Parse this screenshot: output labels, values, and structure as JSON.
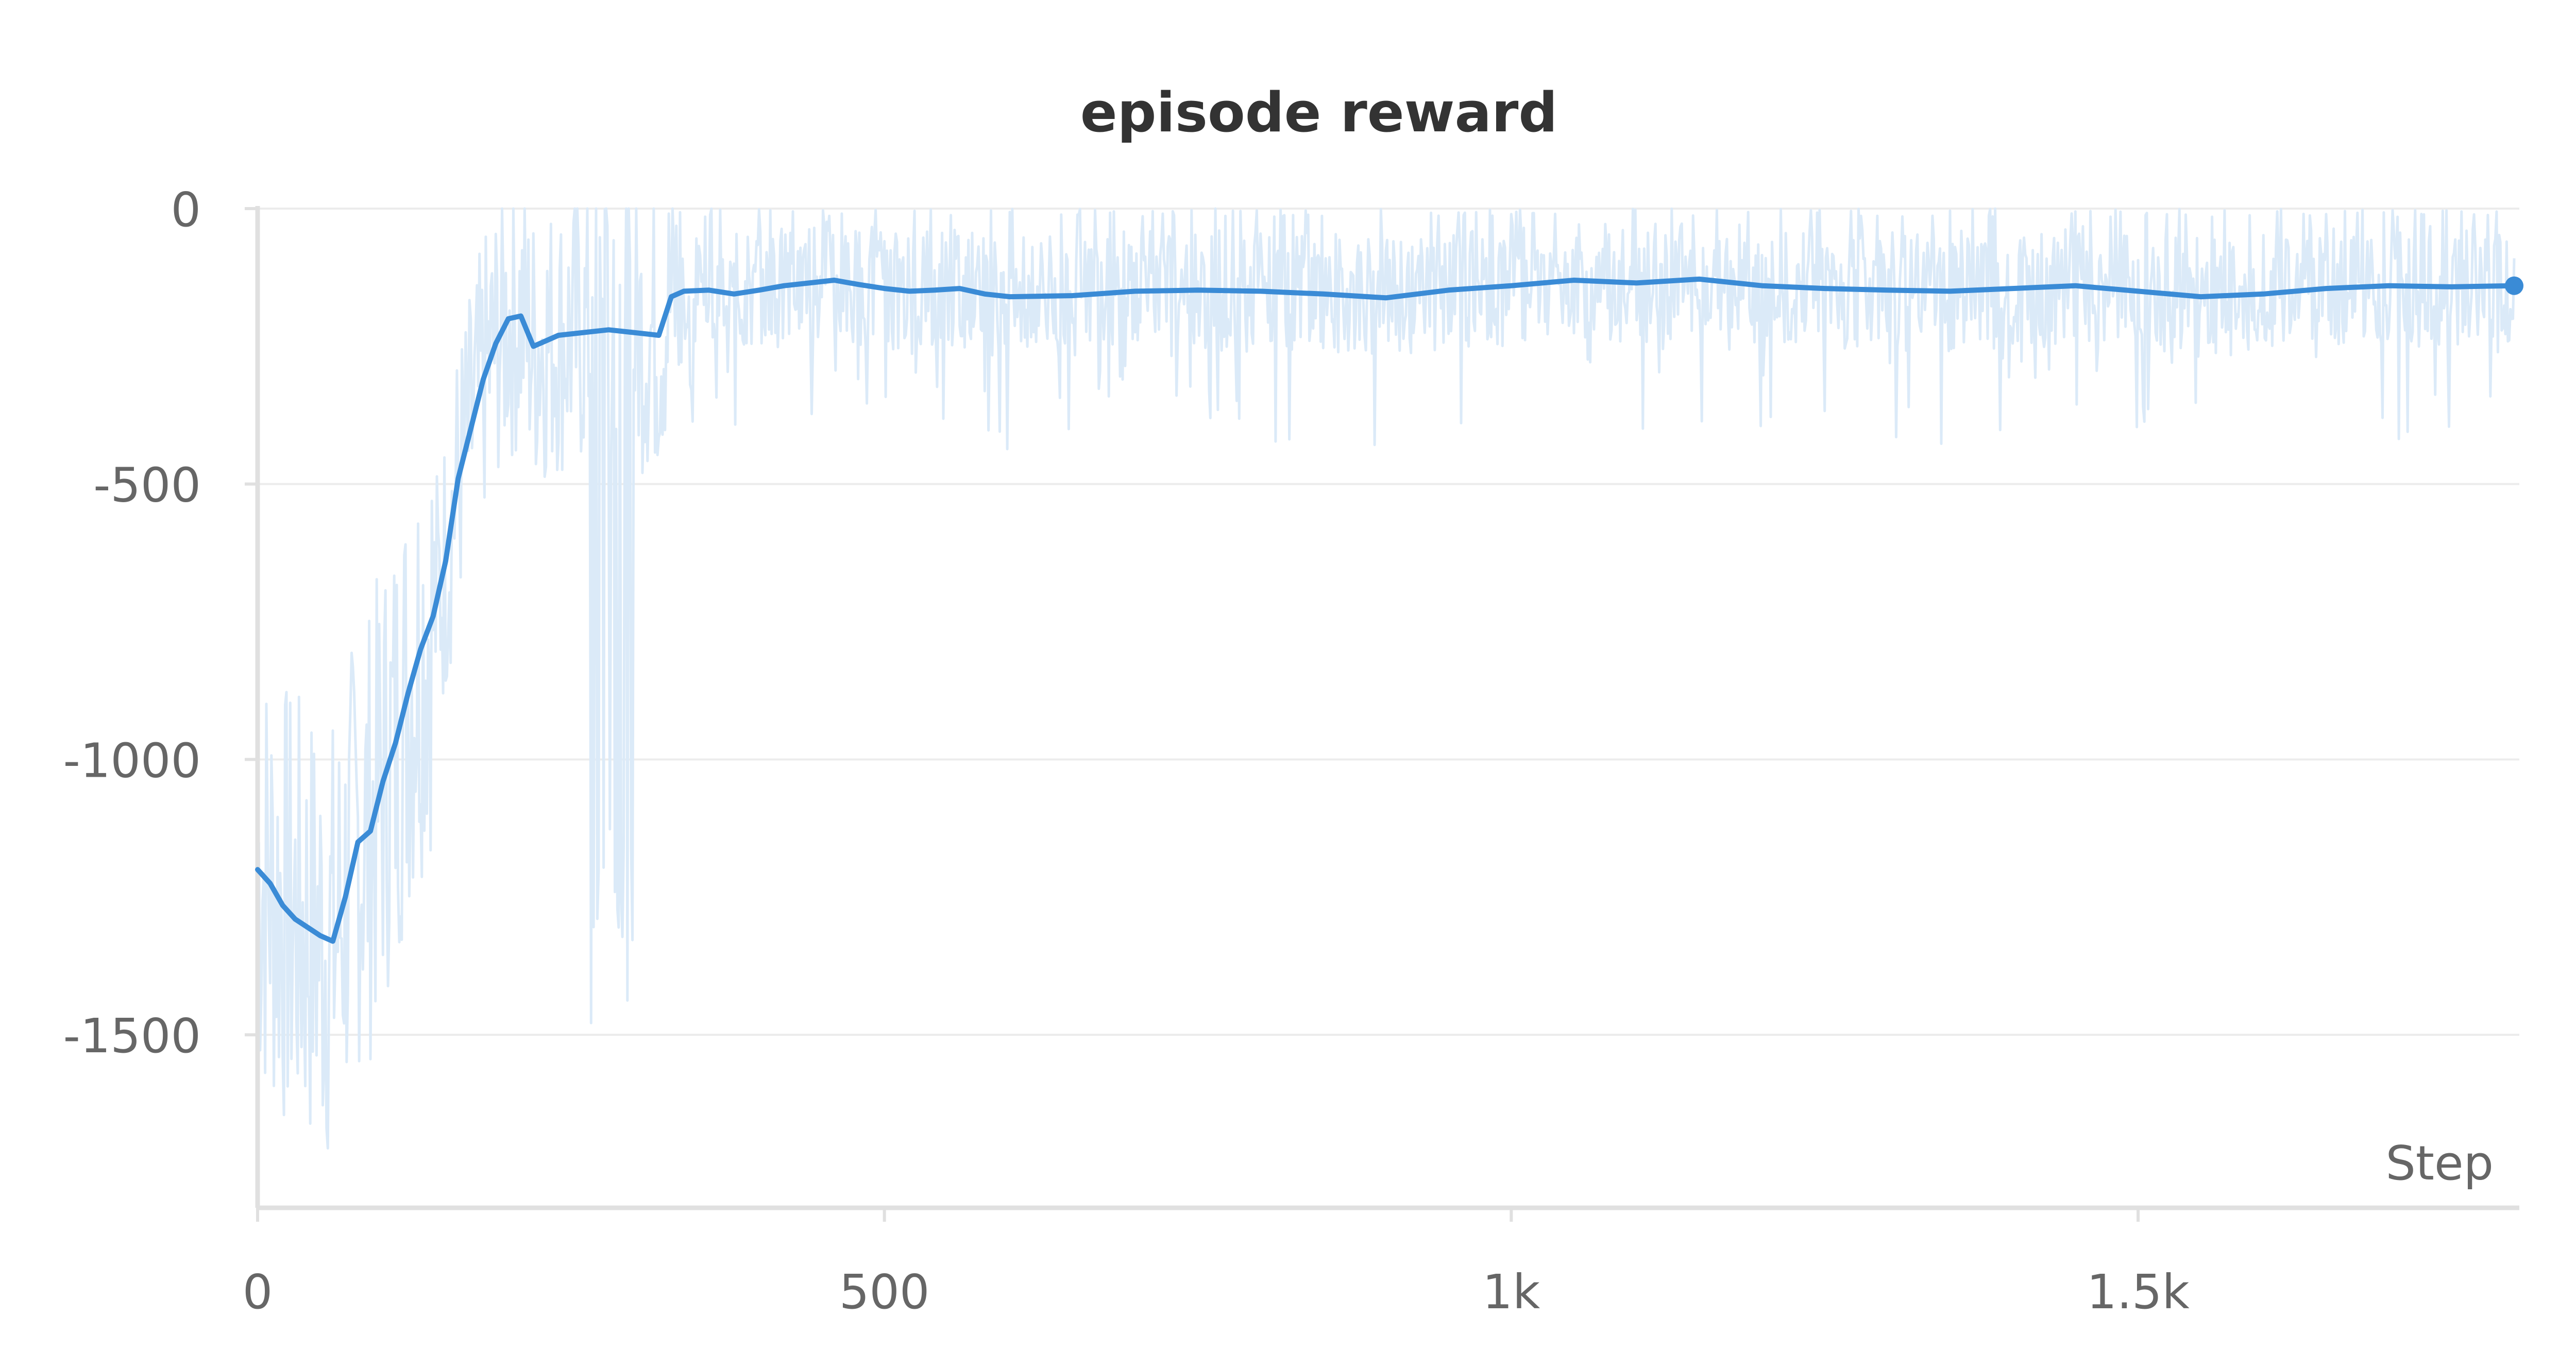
{
  "chart_data": {
    "type": "line",
    "title": "episode reward",
    "xlabel": "Step",
    "ylabel": "",
    "xlim": [
      0,
      1800
    ],
    "ylim": [
      -1800,
      0
    ],
    "x_ticks": [
      {
        "value": 0,
        "label": "0"
      },
      {
        "value": 500,
        "label": "500"
      },
      {
        "value": 1000,
        "label": "1k"
      },
      {
        "value": 1500,
        "label": "1.5k"
      }
    ],
    "y_ticks": [
      {
        "value": 0,
        "label": "0"
      },
      {
        "value": -500,
        "label": "-500"
      },
      {
        "value": -1000,
        "label": "-1000"
      },
      {
        "value": -1500,
        "label": "-1500"
      }
    ],
    "grid": "horizontal",
    "colors": {
      "line": "#3a8bd6",
      "raw": "#dbeaf8",
      "axis": "#e0e0e0",
      "grid": "#ececec",
      "text": "#666666",
      "title": "#333333"
    },
    "series": [
      {
        "role": "smoothed",
        "x": [
          0,
          10,
          20,
          30,
          40,
          50,
          60,
          70,
          80,
          90,
          100,
          110,
          120,
          130,
          140,
          150,
          160,
          170,
          180,
          190,
          200,
          210,
          220,
          240,
          260,
          280,
          300,
          320,
          330,
          340,
          360,
          380,
          400,
          420,
          440,
          460,
          480,
          500,
          520,
          540,
          560,
          580,
          600,
          650,
          700,
          750,
          800,
          850,
          900,
          950,
          1000,
          1050,
          1100,
          1150,
          1200,
          1250,
          1300,
          1350,
          1400,
          1450,
          1500,
          1550,
          1600,
          1650,
          1700,
          1750,
          1800
        ],
        "y": [
          -1200,
          -1225,
          -1265,
          -1290,
          -1305,
          -1320,
          -1330,
          -1250,
          -1150,
          -1130,
          -1040,
          -970,
          -880,
          -800,
          -740,
          -640,
          -490,
          -400,
          -310,
          -245,
          -200,
          -195,
          -250,
          -230,
          -225,
          -220,
          -225,
          -230,
          -160,
          -150,
          -148,
          -155,
          -148,
          -140,
          -135,
          -130,
          -138,
          -145,
          -150,
          -148,
          -145,
          -155,
          -160,
          -158,
          -150,
          -148,
          -150,
          -155,
          -162,
          -148,
          -140,
          -130,
          -135,
          -128,
          -140,
          -145,
          -148,
          -150,
          -145,
          -140,
          -150,
          -160,
          -155,
          -145,
          -140,
          -142,
          -140
        ]
      }
    ]
  }
}
